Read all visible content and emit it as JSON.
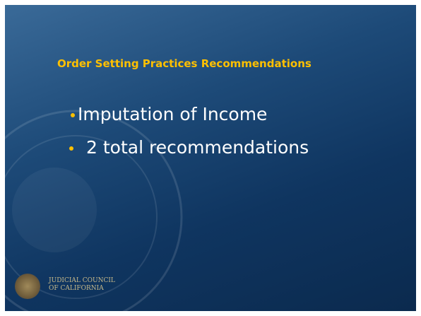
{
  "slide": {
    "title": "Order Setting Practices Recommendations",
    "bullets": [
      "Imputation of Income",
      "2 total recommendations"
    ],
    "footer": [
      "JUDICIAL COUNCIL",
      "OF CALIFORNIA"
    ]
  }
}
